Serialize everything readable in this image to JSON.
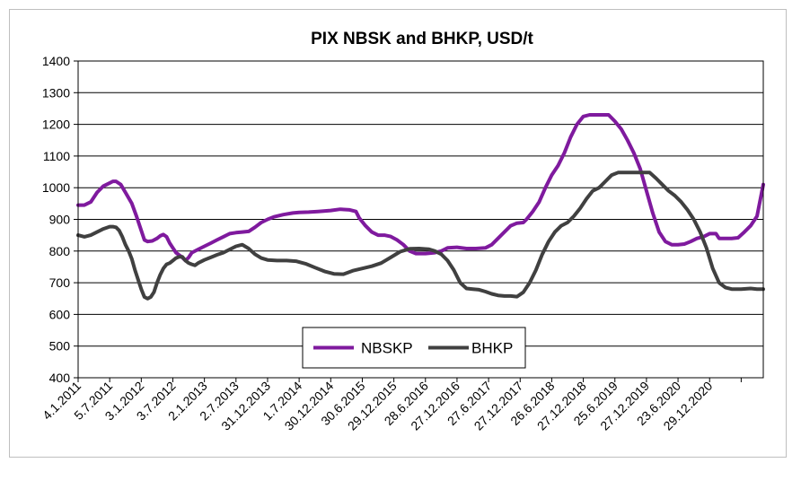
{
  "chart_data": {
    "type": "line",
    "title": "PIX NBSK and BHKP, USD/t",
    "xlabel": "",
    "ylabel": "",
    "ylim": [
      400,
      1400
    ],
    "yticks": [
      "400",
      "500",
      "600",
      "700",
      "800",
      "900",
      "1000",
      "1100",
      "1200",
      "1300",
      "1400"
    ],
    "x_tick_labels": [
      "4.1.2011",
      "5.7.2011",
      "3.1.2012",
      "3.7.2012",
      "2.1.2013",
      "2.7.2013",
      "31.12.2013",
      "1.7.2014",
      "30.12.2014",
      "30.6.2015",
      "29.12.2015",
      "28.6.2016",
      "27.12.2016",
      "27.6.2017",
      "27.12.2017",
      "26.6.2018",
      "27.12.2018",
      "25.6.2019",
      "27.12.2019",
      "23.6.2020",
      "29.12.2020"
    ],
    "x_range": [
      0,
      21.7
    ],
    "grid": "horizontal",
    "legend_position": "bottom-center",
    "series": [
      {
        "name": "NBSKP",
        "color": "#7f1a9e",
        "points": [
          [
            0,
            945
          ],
          [
            0.2,
            945
          ],
          [
            0.4,
            955
          ],
          [
            0.6,
            985
          ],
          [
            0.8,
            1005
          ],
          [
            1.0,
            1015
          ],
          [
            1.1,
            1020
          ],
          [
            1.2,
            1020
          ],
          [
            1.35,
            1010
          ],
          [
            1.5,
            985
          ],
          [
            1.7,
            950
          ],
          [
            1.85,
            910
          ],
          [
            2.0,
            865
          ],
          [
            2.1,
            835
          ],
          [
            2.2,
            830
          ],
          [
            2.35,
            832
          ],
          [
            2.5,
            840
          ],
          [
            2.6,
            848
          ],
          [
            2.7,
            852
          ],
          [
            2.8,
            845
          ],
          [
            2.9,
            825
          ],
          [
            3.0,
            810
          ],
          [
            3.1,
            795
          ],
          [
            3.3,
            780
          ],
          [
            3.4,
            770
          ],
          [
            3.5,
            780
          ],
          [
            3.6,
            795
          ],
          [
            3.8,
            805
          ],
          [
            4.0,
            815
          ],
          [
            4.2,
            825
          ],
          [
            4.4,
            835
          ],
          [
            4.6,
            845
          ],
          [
            4.8,
            855
          ],
          [
            5.0,
            858
          ],
          [
            5.2,
            860
          ],
          [
            5.4,
            862
          ],
          [
            5.6,
            875
          ],
          [
            5.8,
            890
          ],
          [
            6.0,
            900
          ],
          [
            6.2,
            908
          ],
          [
            6.5,
            915
          ],
          [
            6.8,
            920
          ],
          [
            7.0,
            922
          ],
          [
            7.3,
            923
          ],
          [
            7.6,
            925
          ],
          [
            8.0,
            928
          ],
          [
            8.3,
            932
          ],
          [
            8.6,
            930
          ],
          [
            8.8,
            925
          ],
          [
            8.9,
            905
          ],
          [
            9.1,
            880
          ],
          [
            9.3,
            860
          ],
          [
            9.5,
            850
          ],
          [
            9.7,
            850
          ],
          [
            9.9,
            846
          ],
          [
            10.1,
            835
          ],
          [
            10.3,
            820
          ],
          [
            10.5,
            800
          ],
          [
            10.7,
            792
          ],
          [
            11.0,
            792
          ],
          [
            11.3,
            795
          ],
          [
            11.5,
            800
          ],
          [
            11.7,
            810
          ],
          [
            12.0,
            812
          ],
          [
            12.3,
            808
          ],
          [
            12.6,
            808
          ],
          [
            12.9,
            810
          ],
          [
            13.1,
            820
          ],
          [
            13.3,
            840
          ],
          [
            13.5,
            860
          ],
          [
            13.7,
            880
          ],
          [
            13.9,
            888
          ],
          [
            14.1,
            890
          ],
          [
            14.2,
            900
          ],
          [
            14.4,
            925
          ],
          [
            14.6,
            955
          ],
          [
            14.8,
            1000
          ],
          [
            15.0,
            1040
          ],
          [
            15.2,
            1070
          ],
          [
            15.4,
            1110
          ],
          [
            15.6,
            1160
          ],
          [
            15.8,
            1200
          ],
          [
            16.0,
            1225
          ],
          [
            16.2,
            1230
          ],
          [
            16.5,
            1230
          ],
          [
            16.8,
            1230
          ],
          [
            17.0,
            1210
          ],
          [
            17.2,
            1185
          ],
          [
            17.4,
            1150
          ],
          [
            17.6,
            1110
          ],
          [
            17.8,
            1060
          ],
          [
            18.0,
            990
          ],
          [
            18.2,
            920
          ],
          [
            18.4,
            860
          ],
          [
            18.6,
            830
          ],
          [
            18.8,
            820
          ],
          [
            19.0,
            820
          ],
          [
            19.2,
            822
          ],
          [
            19.4,
            830
          ],
          [
            19.6,
            840
          ],
          [
            19.8,
            845
          ],
          [
            20.0,
            855
          ],
          [
            20.2,
            855
          ],
          [
            20.3,
            840
          ],
          [
            20.5,
            840
          ],
          [
            20.7,
            840
          ],
          [
            20.9,
            842
          ],
          [
            21.1,
            860
          ],
          [
            21.3,
            880
          ],
          [
            21.5,
            910
          ],
          [
            21.6,
            960
          ],
          [
            21.7,
            1010
          ]
        ]
      },
      {
        "name": "BHKP",
        "color": "#404040",
        "points": [
          [
            0,
            850
          ],
          [
            0.2,
            845
          ],
          [
            0.4,
            850
          ],
          [
            0.6,
            860
          ],
          [
            0.8,
            870
          ],
          [
            1.0,
            877
          ],
          [
            1.1,
            877
          ],
          [
            1.2,
            875
          ],
          [
            1.3,
            865
          ],
          [
            1.4,
            845
          ],
          [
            1.5,
            820
          ],
          [
            1.6,
            800
          ],
          [
            1.7,
            775
          ],
          [
            1.8,
            740
          ],
          [
            1.9,
            710
          ],
          [
            2.0,
            680
          ],
          [
            2.1,
            655
          ],
          [
            2.2,
            650
          ],
          [
            2.3,
            655
          ],
          [
            2.4,
            670
          ],
          [
            2.5,
            700
          ],
          [
            2.6,
            725
          ],
          [
            2.7,
            745
          ],
          [
            2.8,
            758
          ],
          [
            2.9,
            762
          ],
          [
            3.0,
            770
          ],
          [
            3.1,
            778
          ],
          [
            3.2,
            782
          ],
          [
            3.3,
            782
          ],
          [
            3.4,
            770
          ],
          [
            3.5,
            762
          ],
          [
            3.6,
            758
          ],
          [
            3.7,
            755
          ],
          [
            3.8,
            762
          ],
          [
            4.0,
            772
          ],
          [
            4.2,
            780
          ],
          [
            4.4,
            788
          ],
          [
            4.6,
            795
          ],
          [
            4.8,
            805
          ],
          [
            5.0,
            815
          ],
          [
            5.2,
            820
          ],
          [
            5.4,
            808
          ],
          [
            5.6,
            790
          ],
          [
            5.8,
            778
          ],
          [
            6.0,
            772
          ],
          [
            6.3,
            770
          ],
          [
            6.6,
            770
          ],
          [
            6.9,
            768
          ],
          [
            7.2,
            760
          ],
          [
            7.5,
            748
          ],
          [
            7.8,
            736
          ],
          [
            8.1,
            728
          ],
          [
            8.4,
            727
          ],
          [
            8.7,
            738
          ],
          [
            9.0,
            745
          ],
          [
            9.3,
            752
          ],
          [
            9.6,
            762
          ],
          [
            9.9,
            780
          ],
          [
            10.2,
            798
          ],
          [
            10.5,
            807
          ],
          [
            10.8,
            808
          ],
          [
            11.1,
            806
          ],
          [
            11.3,
            800
          ],
          [
            11.5,
            790
          ],
          [
            11.7,
            770
          ],
          [
            11.9,
            740
          ],
          [
            12.1,
            700
          ],
          [
            12.3,
            682
          ],
          [
            12.5,
            680
          ],
          [
            12.7,
            678
          ],
          [
            12.9,
            672
          ],
          [
            13.1,
            665
          ],
          [
            13.3,
            660
          ],
          [
            13.5,
            658
          ],
          [
            13.7,
            658
          ],
          [
            13.9,
            656
          ],
          [
            14.1,
            670
          ],
          [
            14.3,
            700
          ],
          [
            14.5,
            740
          ],
          [
            14.7,
            790
          ],
          [
            14.9,
            830
          ],
          [
            15.1,
            860
          ],
          [
            15.3,
            880
          ],
          [
            15.5,
            890
          ],
          [
            15.7,
            910
          ],
          [
            15.9,
            935
          ],
          [
            16.1,
            965
          ],
          [
            16.3,
            990
          ],
          [
            16.5,
            1000
          ],
          [
            16.7,
            1020
          ],
          [
            16.9,
            1040
          ],
          [
            17.1,
            1048
          ],
          [
            17.4,
            1048
          ],
          [
            17.8,
            1048
          ],
          [
            18.1,
            1048
          ],
          [
            18.3,
            1030
          ],
          [
            18.5,
            1010
          ],
          [
            18.7,
            990
          ],
          [
            18.9,
            975
          ],
          [
            19.1,
            955
          ],
          [
            19.3,
            930
          ],
          [
            19.5,
            900
          ],
          [
            19.7,
            860
          ],
          [
            19.9,
            810
          ],
          [
            20.1,
            745
          ],
          [
            20.3,
            700
          ],
          [
            20.5,
            685
          ],
          [
            20.7,
            680
          ],
          [
            21.0,
            680
          ],
          [
            21.3,
            682
          ],
          [
            21.5,
            680
          ],
          [
            21.7,
            680
          ]
        ]
      }
    ]
  }
}
